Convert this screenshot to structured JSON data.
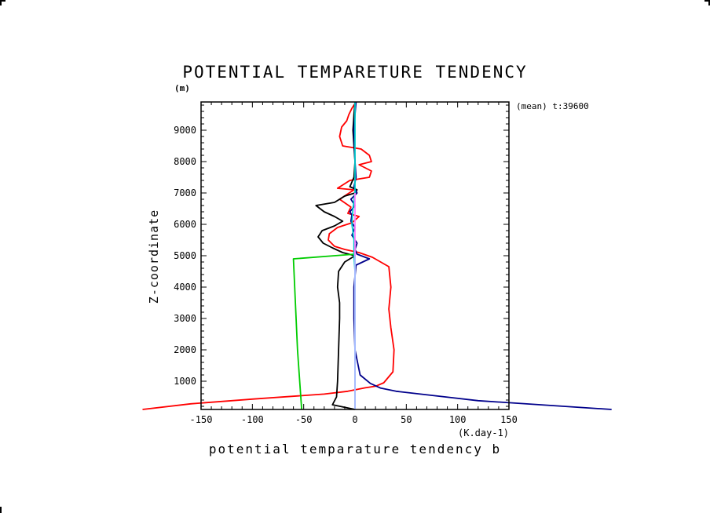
{
  "chart_data": {
    "type": "line",
    "title": "POTENTIAL TEMPARETURE TENDENCY",
    "y_unit": "(m)",
    "ylabel": "Z-coordinate",
    "xlabel": "potential temparature tendency b",
    "x_unit": "(K.day-1)",
    "annotation": "(mean) t:39600",
    "xlim": [
      -150,
      150
    ],
    "ylim": [
      100,
      9900
    ],
    "x_ticks": [
      -150,
      -100,
      -50,
      0,
      50,
      100,
      150
    ],
    "x_tick_labels": [
      "-150",
      "-100",
      "-50",
      "0",
      "50",
      "100",
      "150"
    ],
    "y_ticks": [
      1000,
      2000,
      3000,
      4000,
      5000,
      6000,
      7000,
      8000,
      9000
    ],
    "y_tick_labels": [
      "1000",
      "2000",
      "3000",
      "4000",
      "5000",
      "6000",
      "7000",
      "8000",
      "9000"
    ],
    "grid": false,
    "series": [
      {
        "color": "#ff0000",
        "points": [
          [
            -207,
            100
          ],
          [
            -160,
            280
          ],
          [
            -100,
            430
          ],
          [
            -30,
            590
          ],
          [
            -7,
            680
          ],
          [
            10,
            790
          ],
          [
            20,
            840
          ],
          [
            28,
            950
          ],
          [
            37,
            1300
          ],
          [
            38,
            2000
          ],
          [
            35,
            2700
          ],
          [
            33,
            3300
          ],
          [
            35,
            4000
          ],
          [
            33,
            4650
          ],
          [
            17,
            4950
          ],
          [
            4,
            5100
          ],
          [
            -10,
            5200
          ],
          [
            -20,
            5300
          ],
          [
            -26,
            5500
          ],
          [
            -25,
            5700
          ],
          [
            -17,
            5900
          ],
          [
            -3,
            6050
          ],
          [
            4,
            6250
          ],
          [
            -7,
            6350
          ],
          [
            -4,
            6550
          ],
          [
            -15,
            6800
          ],
          [
            -1,
            7100
          ],
          [
            -17,
            7150
          ],
          [
            -5,
            7400
          ],
          [
            14,
            7500
          ],
          [
            16,
            7700
          ],
          [
            4,
            7900
          ],
          [
            16,
            8000
          ],
          [
            14,
            8200
          ],
          [
            6,
            8400
          ],
          [
            -12,
            8500
          ],
          [
            -15,
            8800
          ],
          [
            -13,
            9100
          ],
          [
            -8,
            9300
          ],
          [
            -6,
            9500
          ],
          [
            -3,
            9700
          ],
          [
            1,
            9900
          ]
        ]
      },
      {
        "color": "#000000",
        "points": [
          [
            0,
            100
          ],
          [
            -22,
            250
          ],
          [
            -18,
            500
          ],
          [
            -17,
            1000
          ],
          [
            -16,
            2000
          ],
          [
            -15,
            3000
          ],
          [
            -15,
            3500
          ],
          [
            -17,
            4000
          ],
          [
            -16,
            4500
          ],
          [
            -10,
            4800
          ],
          [
            0,
            5000
          ],
          [
            -12,
            5100
          ],
          [
            -22,
            5250
          ],
          [
            -31,
            5400
          ],
          [
            -36,
            5600
          ],
          [
            -32,
            5800
          ],
          [
            -20,
            5950
          ],
          [
            -12,
            6100
          ],
          [
            -20,
            6250
          ],
          [
            -30,
            6400
          ],
          [
            -38,
            6600
          ],
          [
            -20,
            6700
          ],
          [
            -10,
            6900
          ],
          [
            0,
            7000
          ],
          [
            2,
            7100
          ],
          [
            -5,
            7200
          ],
          [
            -1,
            7500
          ],
          [
            0,
            8000
          ],
          [
            -2,
            9000
          ],
          [
            -1,
            9500
          ],
          [
            0,
            9900
          ]
        ]
      },
      {
        "color": "#00008b",
        "points": [
          [
            250,
            100
          ],
          [
            120,
            380
          ],
          [
            40,
            680
          ],
          [
            25,
            780
          ],
          [
            15,
            930
          ],
          [
            5,
            1200
          ],
          [
            0,
            2000
          ],
          [
            -1,
            3000
          ],
          [
            -1,
            4000
          ],
          [
            1,
            4700
          ],
          [
            14,
            4900
          ],
          [
            2,
            5050
          ],
          [
            0,
            5200
          ],
          [
            2,
            5400
          ],
          [
            -3,
            5650
          ],
          [
            0,
            5900
          ],
          [
            -4,
            6100
          ],
          [
            -3,
            6300
          ],
          [
            -5,
            6400
          ],
          [
            0,
            6600
          ],
          [
            -4,
            6800
          ],
          [
            2,
            7000
          ],
          [
            -1,
            7200
          ],
          [
            1,
            7500
          ],
          [
            0,
            8000
          ],
          [
            -1,
            9000
          ],
          [
            0,
            9500
          ],
          [
            1,
            9900
          ]
        ]
      },
      {
        "color": "#00cc00",
        "points": [
          [
            -52,
            100
          ],
          [
            -56,
            2000
          ],
          [
            -60,
            4900
          ],
          [
            -20,
            5000
          ],
          [
            0,
            5050
          ]
        ]
      },
      {
        "color": "#00cccc",
        "points": [
          [
            0,
            100
          ],
          [
            0,
            2000
          ],
          [
            0,
            4500
          ],
          [
            -1,
            5000
          ],
          [
            -1,
            5500
          ],
          [
            -3,
            6000
          ],
          [
            -2,
            6500
          ],
          [
            0,
            7000
          ],
          [
            0,
            8000
          ],
          [
            0,
            9900
          ]
        ]
      },
      {
        "color": "#ff80ff",
        "points": [
          [
            0,
            100
          ],
          [
            0,
            1000
          ],
          [
            0,
            2000
          ],
          [
            0,
            3000
          ],
          [
            0,
            4000
          ],
          [
            0,
            5000
          ],
          [
            0,
            5500
          ],
          [
            0,
            6000
          ],
          [
            0,
            6500
          ],
          [
            0,
            7000
          ]
        ]
      },
      {
        "color": "#a0c0ff",
        "points": [
          [
            0,
            100
          ],
          [
            0,
            1000
          ],
          [
            0,
            2000
          ],
          [
            0,
            3000
          ],
          [
            0,
            4000
          ],
          [
            0,
            5000
          ]
        ]
      }
    ]
  }
}
